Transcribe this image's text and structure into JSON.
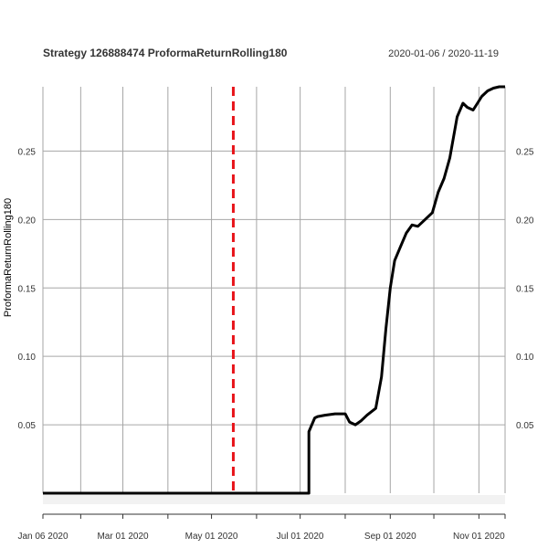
{
  "chart_data": {
    "type": "line",
    "title": "Strategy 126888474 ProformaReturnRolling180",
    "date_range": "2020-01-06 / 2020-11-19",
    "ylabel": "ProformaReturnRolling180",
    "xlabel": "",
    "x_tick_labels": [
      "Jan 06 2020",
      "Mar 01 2020",
      "May 01 2020",
      "Jul 01 2020",
      "Sep 01 2020",
      "Nov 01 2020"
    ],
    "x_tick_dates": [
      "2020-01-06",
      "2020-03-01",
      "2020-05-01",
      "2020-07-01",
      "2020-09-01",
      "2020-11-01"
    ],
    "x_grid_dates": [
      "2020-01-06",
      "2020-02-01",
      "2020-03-01",
      "2020-04-01",
      "2020-05-01",
      "2020-06-01",
      "2020-07-01",
      "2020-08-01",
      "2020-09-01",
      "2020-10-01",
      "2020-11-01"
    ],
    "xlim": [
      "2020-01-06",
      "2020-11-19"
    ],
    "y_ticks": [
      0.05,
      0.1,
      0.15,
      0.2,
      0.25
    ],
    "y_tick_labels": [
      "0.05",
      "0.10",
      "0.15",
      "0.20",
      "0.25"
    ],
    "ylim": [
      0.0,
      0.297
    ],
    "grid": true,
    "line_color": "#000000",
    "marker_line": {
      "date": "2020-05-16",
      "color": "#e8141a",
      "style": "dashed"
    },
    "series": [
      {
        "x": [
          "2020-01-06",
          "2020-07-07",
          "2020-07-07",
          "2020-07-09",
          "2020-07-11",
          "2020-07-13",
          "2020-07-18",
          "2020-07-25",
          "2020-08-01",
          "2020-08-04",
          "2020-08-08",
          "2020-08-12",
          "2020-08-16",
          "2020-08-22",
          "2020-08-26",
          "2020-08-29",
          "2020-09-01",
          "2020-09-04",
          "2020-09-08",
          "2020-09-12",
          "2020-09-16",
          "2020-09-20",
          "2020-09-25",
          "2020-09-30",
          "2020-10-04",
          "2020-10-08",
          "2020-10-12",
          "2020-10-17",
          "2020-10-21",
          "2020-10-24",
          "2020-10-28",
          "2020-10-31",
          "2020-11-03",
          "2020-11-07",
          "2020-11-11",
          "2020-11-15",
          "2020-11-19"
        ],
        "y": [
          0.0,
          0.0,
          0.045,
          0.05,
          0.055,
          0.056,
          0.057,
          0.058,
          0.058,
          0.052,
          0.05,
          0.053,
          0.057,
          0.062,
          0.085,
          0.12,
          0.15,
          0.17,
          0.18,
          0.19,
          0.196,
          0.195,
          0.2,
          0.205,
          0.22,
          0.23,
          0.245,
          0.275,
          0.285,
          0.282,
          0.28,
          0.285,
          0.29,
          0.294,
          0.296,
          0.297,
          0.297
        ]
      }
    ]
  }
}
